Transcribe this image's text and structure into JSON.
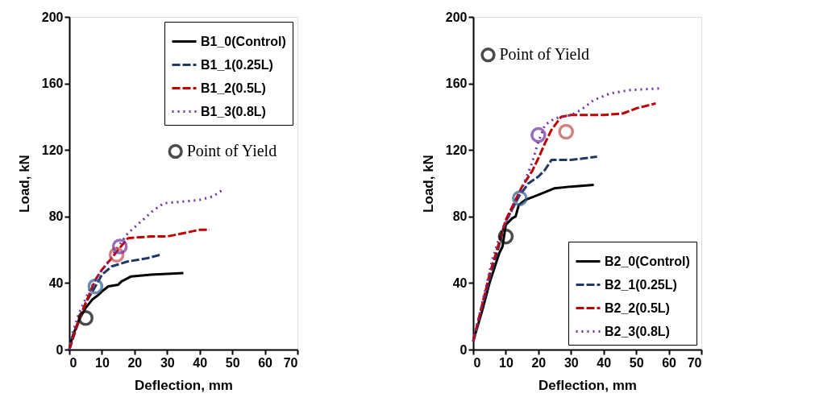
{
  "chart_data": [
    {
      "type": "line",
      "xlabel": "Deflection, mm",
      "ylabel": "Load, kN",
      "xlim": [
        0,
        70
      ],
      "ylim": [
        0,
        200
      ],
      "xticks": [
        0,
        10,
        20,
        30,
        40,
        50,
        60,
        70
      ],
      "yticks": [
        0,
        40,
        80,
        120,
        160,
        200
      ],
      "grid": false,
      "legend": "top right",
      "marker": "none",
      "series": [
        {
          "name": "B1_0(Control)",
          "color": "#000000",
          "line_style": "solid",
          "x": [
            0,
            1,
            3,
            5,
            7,
            9,
            10,
            12,
            15,
            16,
            19,
            25,
            35
          ],
          "values": [
            0,
            8,
            18,
            25,
            30,
            33,
            35,
            38,
            39,
            41,
            44,
            45,
            46
          ]
        },
        {
          "name": "B1_1(0.25L)",
          "color": "#1f3864",
          "line_style": "dashed",
          "x": [
            0,
            2,
            5,
            8,
            10,
            13,
            18,
            24,
            28
          ],
          "values": [
            0,
            12,
            28,
            38,
            45,
            50,
            53,
            55,
            57
          ]
        },
        {
          "name": "B1_2(0.5L)",
          "color": "#c00000",
          "line_style": "dashed",
          "x": [
            0,
            2,
            5,
            8,
            10,
            13,
            15,
            18,
            25,
            30,
            35,
            40,
            43
          ],
          "values": [
            0,
            13,
            28,
            42,
            48,
            55,
            60,
            67,
            68,
            68,
            70,
            72,
            72
          ]
        },
        {
          "name": "B1_3(0.8L)",
          "color": "#7030a0",
          "line_style": "dotted",
          "x": [
            0,
            1,
            3,
            6,
            9,
            12,
            15,
            18,
            22,
            26,
            29,
            35,
            40,
            44,
            47
          ],
          "values": [
            0,
            10,
            22,
            35,
            45,
            53,
            62,
            70,
            77,
            84,
            88,
            89,
            90,
            92,
            96
          ]
        },
        {
          "type": "scatter",
          "name": "Point of Yield",
          "color": "#000000",
          "marker": "circle",
          "x": [
            5,
            8,
            14.5,
            15.5
          ],
          "values": [
            19,
            38,
            57,
            62
          ],
          "colors": [
            "#000000",
            "#2e5f8a",
            "#c0504d",
            "#7030a0"
          ]
        }
      ]
    },
    {
      "type": "line",
      "xlabel": "Deflection, mm",
      "ylabel": "Load, kN",
      "xlim": [
        0,
        70
      ],
      "ylim": [
        0,
        200
      ],
      "xticks": [
        0,
        10,
        20,
        30,
        40,
        50,
        60,
        70
      ],
      "yticks": [
        0,
        40,
        80,
        120,
        160,
        200
      ],
      "grid": false,
      "legend": "bottom right",
      "marker": "none",
      "series": [
        {
          "name": "B2_0(Control)",
          "color": "#000000",
          "line_style": "solid",
          "x": [
            0,
            3,
            5,
            8,
            9,
            10,
            12,
            13,
            14,
            16,
            20,
            25,
            30,
            37
          ],
          "values": [
            5,
            25,
            40,
            58,
            62,
            75,
            79,
            80,
            87,
            90,
            93,
            97,
            98,
            99
          ]
        },
        {
          "name": "B2_1(0.25L)",
          "color": "#1f3864",
          "line_style": "dashed",
          "x": [
            0,
            5,
            10,
            14,
            17,
            20,
            22,
            24,
            30,
            38
          ],
          "values": [
            5,
            42,
            77,
            92,
            100,
            104,
            108,
            114,
            114,
            116
          ]
        },
        {
          "name": "B2_2(0.5L)",
          "color": "#c00000",
          "line_style": "dashed",
          "x": [
            0,
            5,
            10,
            15,
            18,
            20,
            22,
            24,
            27,
            30,
            35,
            40,
            46,
            50,
            56
          ],
          "values": [
            5,
            45,
            78,
            98,
            107,
            115,
            124,
            132,
            140,
            141,
            141,
            141,
            142,
            145,
            148
          ]
        },
        {
          "name": "B2_3(0.8L)",
          "color": "#7030a0",
          "line_style": "dotted",
          "x": [
            0,
            3,
            6,
            9,
            12,
            15,
            18,
            20,
            22,
            25,
            30,
            33,
            37,
            42,
            48,
            57
          ],
          "values": [
            5,
            30,
            55,
            73,
            84,
            97,
            112,
            125,
            135,
            139,
            141,
            144,
            150,
            154,
            156,
            157
          ]
        },
        {
          "type": "scatter",
          "name": "Point of Yield",
          "color": "#000000",
          "marker": "circle",
          "x": [
            10,
            14.3,
            20,
            28.5
          ],
          "values": [
            68,
            91,
            129,
            131
          ],
          "colors": [
            "#000000",
            "#2e5f8a",
            "#7030a0",
            "#c0504d"
          ]
        }
      ]
    }
  ]
}
